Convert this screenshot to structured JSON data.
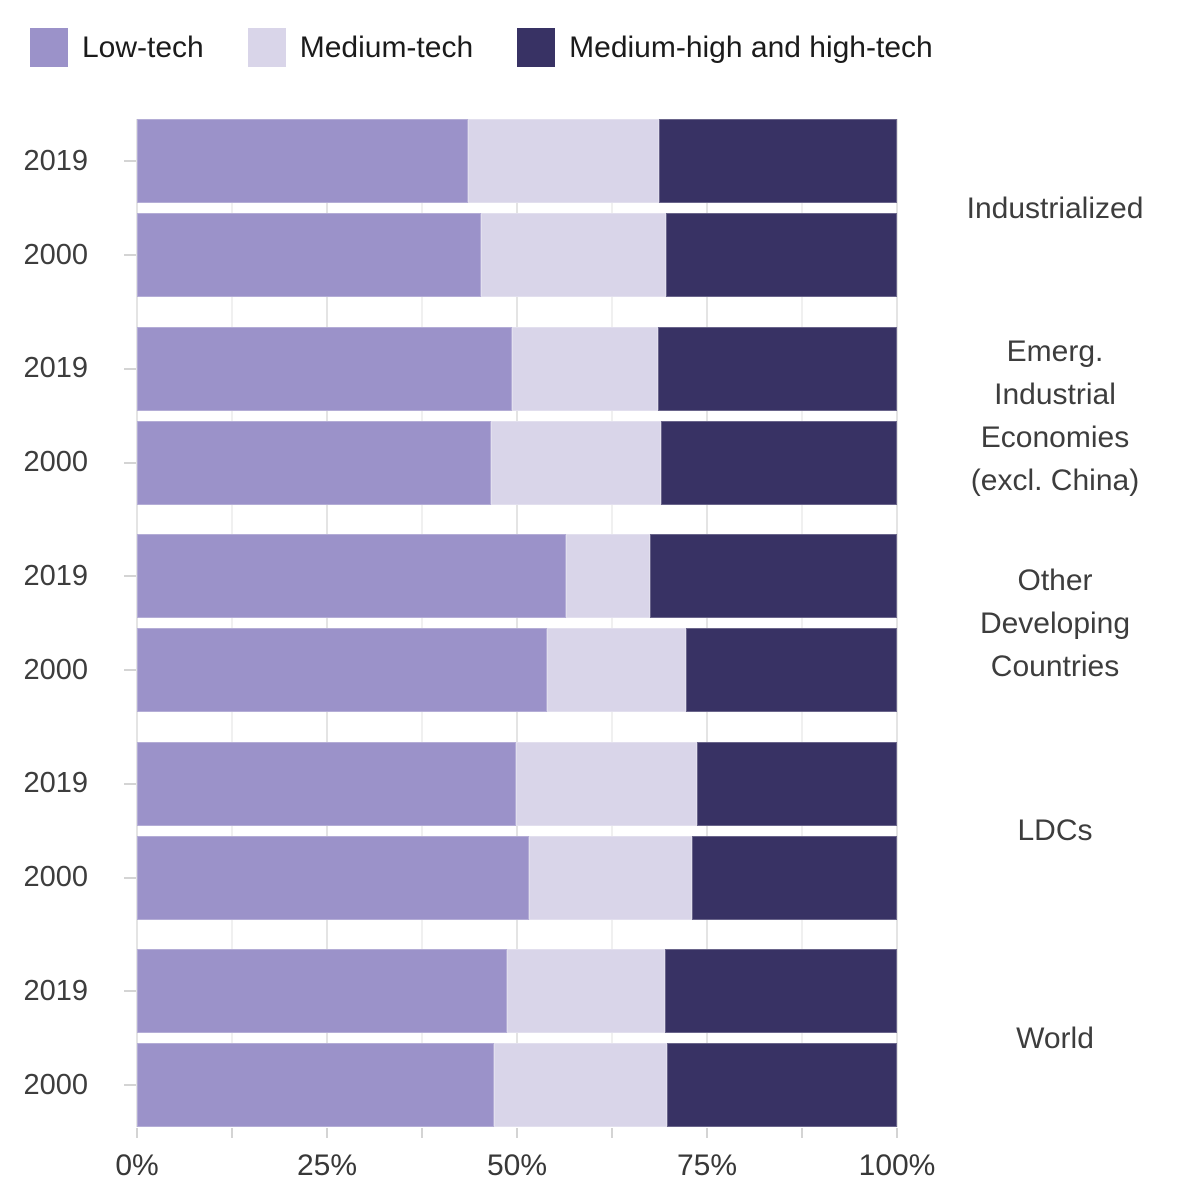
{
  "legend": {
    "items": [
      {
        "label": "Low-tech",
        "color": "#9b92c9"
      },
      {
        "label": "Medium-tech",
        "color": "#d9d5e9"
      },
      {
        "label": "Medium-high and high-tech",
        "color": "#383264"
      }
    ]
  },
  "chart_data": {
    "type": "bar",
    "orientation": "horizontal",
    "stacked": true,
    "unit": "percent",
    "series_names": [
      "Low-tech",
      "Medium-tech",
      "Medium-high and high-tech"
    ],
    "series_colors": [
      "#9b92c9",
      "#d9d5e9",
      "#383264"
    ],
    "x_axis": {
      "range": [
        0,
        100
      ],
      "major_tick_labels": [
        "0%",
        "25%",
        "50%",
        "75%",
        "100%"
      ],
      "minor_ticks_every": 12.5,
      "grid": true
    },
    "groups": [
      {
        "label": "Industrialized",
        "label_lines": [
          "Industrialized"
        ],
        "bars": [
          {
            "year": "2019",
            "values": [
              43.5,
              25.2,
              31.3
            ]
          },
          {
            "year": "2000",
            "values": [
              45.2,
              24.4,
              30.4
            ]
          }
        ]
      },
      {
        "label": "Emerg. Industrial Economies (excl. China)",
        "label_lines": [
          "Emerg.",
          "Industrial",
          "Economies",
          "(excl. China)"
        ],
        "bars": [
          {
            "year": "2019",
            "values": [
              49.4,
              19.1,
              31.5
            ]
          },
          {
            "year": "2000",
            "values": [
              46.6,
              22.3,
              31.1
            ]
          }
        ]
      },
      {
        "label": "Other Developing Countries",
        "label_lines": [
          "Other",
          "Developing",
          "Countries"
        ],
        "bars": [
          {
            "year": "2019",
            "values": [
              56.5,
              11.0,
              32.5
            ]
          },
          {
            "year": "2000",
            "values": [
              53.9,
              18.4,
              27.7
            ]
          }
        ]
      },
      {
        "label": "LDCs",
        "label_lines": [
          "LDCs"
        ],
        "bars": [
          {
            "year": "2019",
            "values": [
              49.9,
              23.8,
              26.3
            ]
          },
          {
            "year": "2000",
            "values": [
              51.6,
              21.4,
              27.0
            ]
          }
        ]
      },
      {
        "label": "World",
        "label_lines": [
          "World"
        ],
        "bars": [
          {
            "year": "2019",
            "values": [
              48.7,
              20.8,
              30.5
            ]
          },
          {
            "year": "2000",
            "values": [
              47.0,
              22.7,
              30.3
            ]
          }
        ]
      }
    ]
  }
}
